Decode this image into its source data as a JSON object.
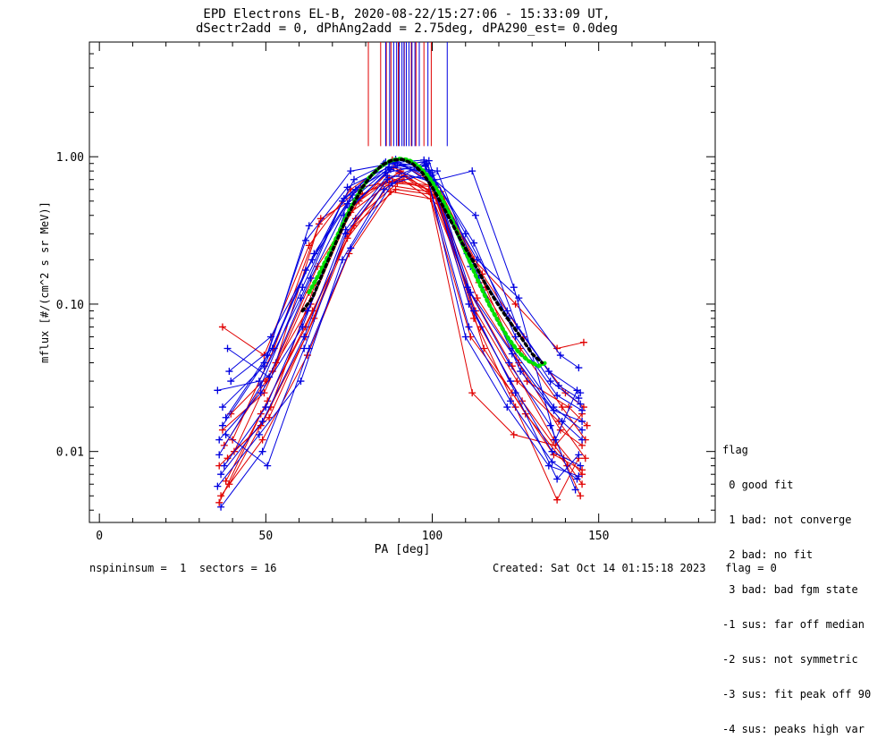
{
  "title_line1": "EPD Electrons EL-B, 2020-08-22/15:27:06 - 15:33:09 UT,",
  "title_line2": "dSectr2add = 0, dPhAng2add = 2.75deg, dPA290_est=   0.0deg",
  "legend": {
    "heading": "flag",
    "items": [
      " 0 good fit",
      " 1 bad: not converge",
      " 2 bad: no fit",
      " 3 bad: bad fgm state",
      "-1 sus: far off median",
      "-2 sus: not symmetric",
      "-3 sus: fit peak off 90",
      "-4 sus: peaks high var"
    ]
  },
  "footer": {
    "left": "nspininsum =  1  sectors = 16",
    "right": "Created: Sat Oct 14 01:15:18 2023   flag = 0"
  },
  "colors": {
    "red": "#e00000",
    "blue": "#0000e0",
    "green": "#00e000",
    "black": "#000000"
  },
  "chart_data": {
    "type": "line",
    "xlabel": "PA [deg]",
    "ylabel": "mflux [#/(cm^2 s sr MeV)]",
    "xlim": [
      -3,
      185
    ],
    "ylim": [
      0.0033,
      6.0
    ],
    "yscale": "log",
    "xticks": [
      0,
      50,
      100,
      150
    ],
    "xtick_labels": [
      "0",
      "50",
      "100",
      "150"
    ],
    "yticks": [
      0.01,
      0.1,
      1.0
    ],
    "ytick_labels": [
      "0.01",
      "0.10",
      "1.00"
    ],
    "vertical_markers": {
      "red_x": [
        80.8,
        84.5,
        86.2,
        87.6,
        89.8,
        91.6,
        93.7,
        95.1,
        97.5,
        99.7
      ],
      "blue_x": [
        86.0,
        87.2,
        88.4,
        89.3,
        90.1,
        90.9,
        91.5,
        92.2,
        93.0,
        93.9,
        94.8,
        96.1,
        98.7,
        104.5
      ],
      "ymin": 1.18
    },
    "red_curves": [
      {
        "pa": [
          36.0,
          48.5,
          62.0,
          74.5,
          87.0,
          99.0,
          111.5,
          124.0,
          136.5,
          145.0
        ],
        "flux": [
          0.008,
          0.015,
          0.06,
          0.3,
          0.72,
          0.6,
          0.12,
          0.038,
          0.012,
          0.007
        ]
      },
      {
        "pa": [
          37.5,
          50.0,
          63.5,
          76.0,
          88.5,
          100.5,
          113.0,
          125.5,
          138.0,
          146.0
        ],
        "flux": [
          0.011,
          0.03,
          0.1,
          0.45,
          0.85,
          0.55,
          0.09,
          0.03,
          0.016,
          0.009
        ]
      },
      {
        "pa": [
          39.0,
          51.5,
          65.0,
          77.5,
          90.0,
          102.0,
          114.5,
          127.0,
          139.5,
          145.0
        ],
        "flux": [
          0.006,
          0.02,
          0.14,
          0.52,
          0.78,
          0.5,
          0.07,
          0.022,
          0.009,
          0.006
        ]
      },
      {
        "pa": [
          37.0,
          49.5,
          63.0,
          75.5,
          88.0,
          100.0,
          112.5,
          125.0,
          137.5,
          145.5
        ],
        "flux": [
          0.07,
          0.045,
          0.25,
          0.6,
          0.95,
          0.68,
          0.2,
          0.1,
          0.05,
          0.055
        ]
      },
      {
        "pa": [
          38.5,
          51.0,
          64.5,
          77.0,
          89.5,
          101.5,
          114.0,
          126.5,
          139.0,
          146.0
        ],
        "flux": [
          0.009,
          0.017,
          0.08,
          0.38,
          0.66,
          0.62,
          0.14,
          0.05,
          0.02,
          0.012
        ]
      },
      {
        "pa": [
          40.0,
          52.5,
          66.0,
          78.5,
          91.0,
          103.0,
          115.5,
          128.0,
          140.5,
          144.5
        ],
        "flux": [
          0.012,
          0.05,
          0.35,
          0.62,
          0.7,
          0.45,
          0.05,
          0.018,
          0.008,
          0.005
        ]
      },
      {
        "pa": [
          36.5,
          49.0,
          62.5,
          75.0,
          87.5,
          99.5,
          112.0,
          124.5,
          137.0,
          145.0
        ],
        "flux": [
          0.005,
          0.012,
          0.045,
          0.22,
          0.58,
          0.52,
          0.025,
          0.013,
          0.011,
          0.018
        ]
      },
      {
        "pa": [
          39.5,
          52.0,
          65.5,
          78.0,
          90.5,
          102.5,
          115.0,
          127.5,
          140.0,
          145.5
        ],
        "flux": [
          0.018,
          0.035,
          0.18,
          0.5,
          0.8,
          0.58,
          0.16,
          0.06,
          0.025,
          0.02
        ]
      },
      {
        "pa": [
          37.0,
          49.5,
          63.0,
          75.5,
          88.0,
          100.0,
          112.5,
          125.0,
          137.5,
          144.0
        ],
        "flux": [
          0.014,
          0.025,
          0.12,
          0.42,
          0.68,
          0.64,
          0.08,
          0.02,
          0.0047,
          0.009
        ]
      },
      {
        "pa": [
          38.0,
          50.5,
          64.0,
          76.5,
          89.0,
          101.0,
          113.5,
          126.0,
          138.5,
          145.0
        ],
        "flux": [
          0.0063,
          0.022,
          0.09,
          0.34,
          0.6,
          0.55,
          0.11,
          0.04,
          0.014,
          0.011
        ]
      },
      {
        "pa": [
          40.5,
          53.0,
          66.5,
          79.0,
          91.5,
          103.5,
          116.0,
          128.5,
          141.0,
          146.5
        ],
        "flux": [
          0.01,
          0.04,
          0.38,
          0.56,
          0.74,
          0.52,
          0.13,
          0.03,
          0.02,
          0.015
        ]
      },
      {
        "pa": [
          36.0,
          48.5,
          62.0,
          74.5,
          87.0,
          99.0,
          111.5,
          124.0,
          136.5,
          145.0
        ],
        "flux": [
          0.0045,
          0.018,
          0.07,
          0.28,
          0.64,
          0.58,
          0.06,
          0.025,
          0.0095,
          0.0075
        ]
      }
    ],
    "blue_curves": [
      {
        "pa": [
          35.5,
          48.0,
          60.5,
          73.0,
          85.5,
          97.5,
          110.0,
          122.5,
          135.0,
          144.5
        ],
        "flux": [
          0.026,
          0.03,
          0.11,
          0.5,
          0.9,
          0.95,
          0.3,
          0.09,
          0.035,
          0.025
        ]
      },
      {
        "pa": [
          37.0,
          49.5,
          62.0,
          74.5,
          87.0,
          99.0,
          111.5,
          124.0,
          136.5,
          145.0
        ],
        "flux": [
          0.015,
          0.04,
          0.27,
          0.62,
          0.85,
          0.8,
          0.18,
          0.05,
          0.02,
          0.014
        ]
      },
      {
        "pa": [
          38.5,
          51.0,
          63.5,
          76.0,
          88.5,
          100.5,
          113.0,
          125.5,
          138.0,
          144.0
        ],
        "flux": [
          0.05,
          0.032,
          0.15,
          0.55,
          0.93,
          0.7,
          0.4,
          0.07,
          0.028,
          0.023
        ]
      },
      {
        "pa": [
          36.0,
          48.5,
          61.0,
          73.5,
          86.0,
          98.0,
          110.5,
          123.0,
          135.5,
          143.0
        ],
        "flux": [
          0.012,
          0.025,
          0.07,
          0.4,
          0.78,
          0.88,
          0.13,
          0.04,
          0.015,
          0.0055
        ]
      },
      {
        "pa": [
          39.0,
          51.5,
          64.0,
          76.5,
          89.0,
          101.0,
          113.5,
          126.0,
          138.5,
          144.0
        ],
        "flux": [
          0.035,
          0.06,
          0.2,
          0.7,
          0.96,
          0.62,
          0.2,
          0.11,
          0.045,
          0.037
        ]
      },
      {
        "pa": [
          36.5,
          49.0,
          61.5,
          74.0,
          86.5,
          98.5,
          111.0,
          123.5,
          136.0,
          144.5
        ],
        "flux": [
          0.0042,
          0.01,
          0.05,
          0.3,
          0.7,
          0.9,
          0.1,
          0.03,
          0.01,
          0.008
        ]
      },
      {
        "pa": [
          38.0,
          50.5,
          63.0,
          75.5,
          88.0,
          100.0,
          112.5,
          125.0,
          137.5,
          145.0
        ],
        "flux": [
          0.017,
          0.045,
          0.34,
          0.8,
          0.9,
          0.75,
          0.26,
          0.06,
          0.024,
          0.019
        ]
      },
      {
        "pa": [
          37.5,
          50.0,
          62.5,
          75.0,
          87.5,
          99.5,
          112.0,
          124.5,
          137.0,
          143.5
        ],
        "flux": [
          0.008,
          0.02,
          0.09,
          0.45,
          0.82,
          0.68,
          0.8,
          0.13,
          0.012,
          0.026
        ]
      },
      {
        "pa": [
          35.5,
          48.0,
          60.5,
          73.0,
          85.5,
          97.5,
          110.0,
          122.5,
          135.0,
          144.0
        ],
        "flux": [
          0.0058,
          0.013,
          0.03,
          0.2,
          0.6,
          0.92,
          0.06,
          0.02,
          0.008,
          0.0068
        ]
      },
      {
        "pa": [
          39.5,
          52.0,
          64.5,
          77.0,
          89.5,
          101.5,
          114.0,
          126.5,
          139.0,
          145.0
        ],
        "flux": [
          0.03,
          0.05,
          0.22,
          0.6,
          0.88,
          0.8,
          0.15,
          0.035,
          0.016,
          0.012
        ]
      },
      {
        "pa": [
          36.0,
          48.5,
          61.0,
          73.5,
          86.0,
          98.0,
          110.5,
          123.0,
          135.5,
          144.5
        ],
        "flux": [
          0.0095,
          0.028,
          0.13,
          0.52,
          0.92,
          0.86,
          0.22,
          0.08,
          0.03,
          0.021
        ]
      },
      {
        "pa": [
          38.0,
          50.5,
          63.0,
          75.5,
          88.0,
          100.0,
          112.5,
          125.0,
          137.5,
          144.0
        ],
        "flux": [
          0.013,
          0.008,
          0.05,
          0.24,
          0.66,
          0.78,
          0.09,
          0.025,
          0.0065,
          0.0095
        ]
      },
      {
        "pa": [
          37.0,
          49.5,
          62.0,
          74.5,
          87.0,
          99.0,
          111.5,
          124.0,
          136.5,
          145.0
        ],
        "flux": [
          0.02,
          0.038,
          0.17,
          0.48,
          0.84,
          0.94,
          0.12,
          0.046,
          0.019,
          0.016
        ]
      },
      {
        "pa": [
          36.5,
          49.0,
          61.5,
          74.0,
          86.5,
          98.5,
          111.0,
          123.5,
          136.0,
          143.5
        ],
        "flux": [
          0.007,
          0.016,
          0.06,
          0.32,
          0.74,
          0.72,
          0.07,
          0.022,
          0.0085,
          0.0065
        ]
      }
    ],
    "green_fit": {
      "pa": [
        63,
        66,
        69,
        72,
        75,
        78,
        81,
        84,
        87,
        90,
        93,
        96,
        99,
        102,
        105,
        108,
        111,
        114,
        117,
        120,
        123,
        126,
        129,
        132,
        134
      ],
      "flux": [
        0.12,
        0.16,
        0.22,
        0.31,
        0.43,
        0.57,
        0.72,
        0.84,
        0.93,
        0.97,
        0.95,
        0.86,
        0.73,
        0.57,
        0.42,
        0.29,
        0.2,
        0.14,
        0.1,
        0.075,
        0.058,
        0.047,
        0.041,
        0.038,
        0.04
      ]
    },
    "black_fit": {
      "pa": [
        61,
        64,
        67,
        70,
        73,
        76,
        79,
        82,
        85,
        88,
        91,
        94,
        97,
        100,
        103,
        106,
        109,
        112,
        115,
        118,
        121,
        124,
        127,
        130,
        133
      ],
      "flux": [
        0.09,
        0.11,
        0.16,
        0.23,
        0.33,
        0.46,
        0.62,
        0.76,
        0.88,
        0.95,
        0.96,
        0.9,
        0.78,
        0.62,
        0.47,
        0.35,
        0.26,
        0.2,
        0.15,
        0.115,
        0.09,
        0.072,
        0.058,
        0.046,
        0.04
      ]
    }
  }
}
